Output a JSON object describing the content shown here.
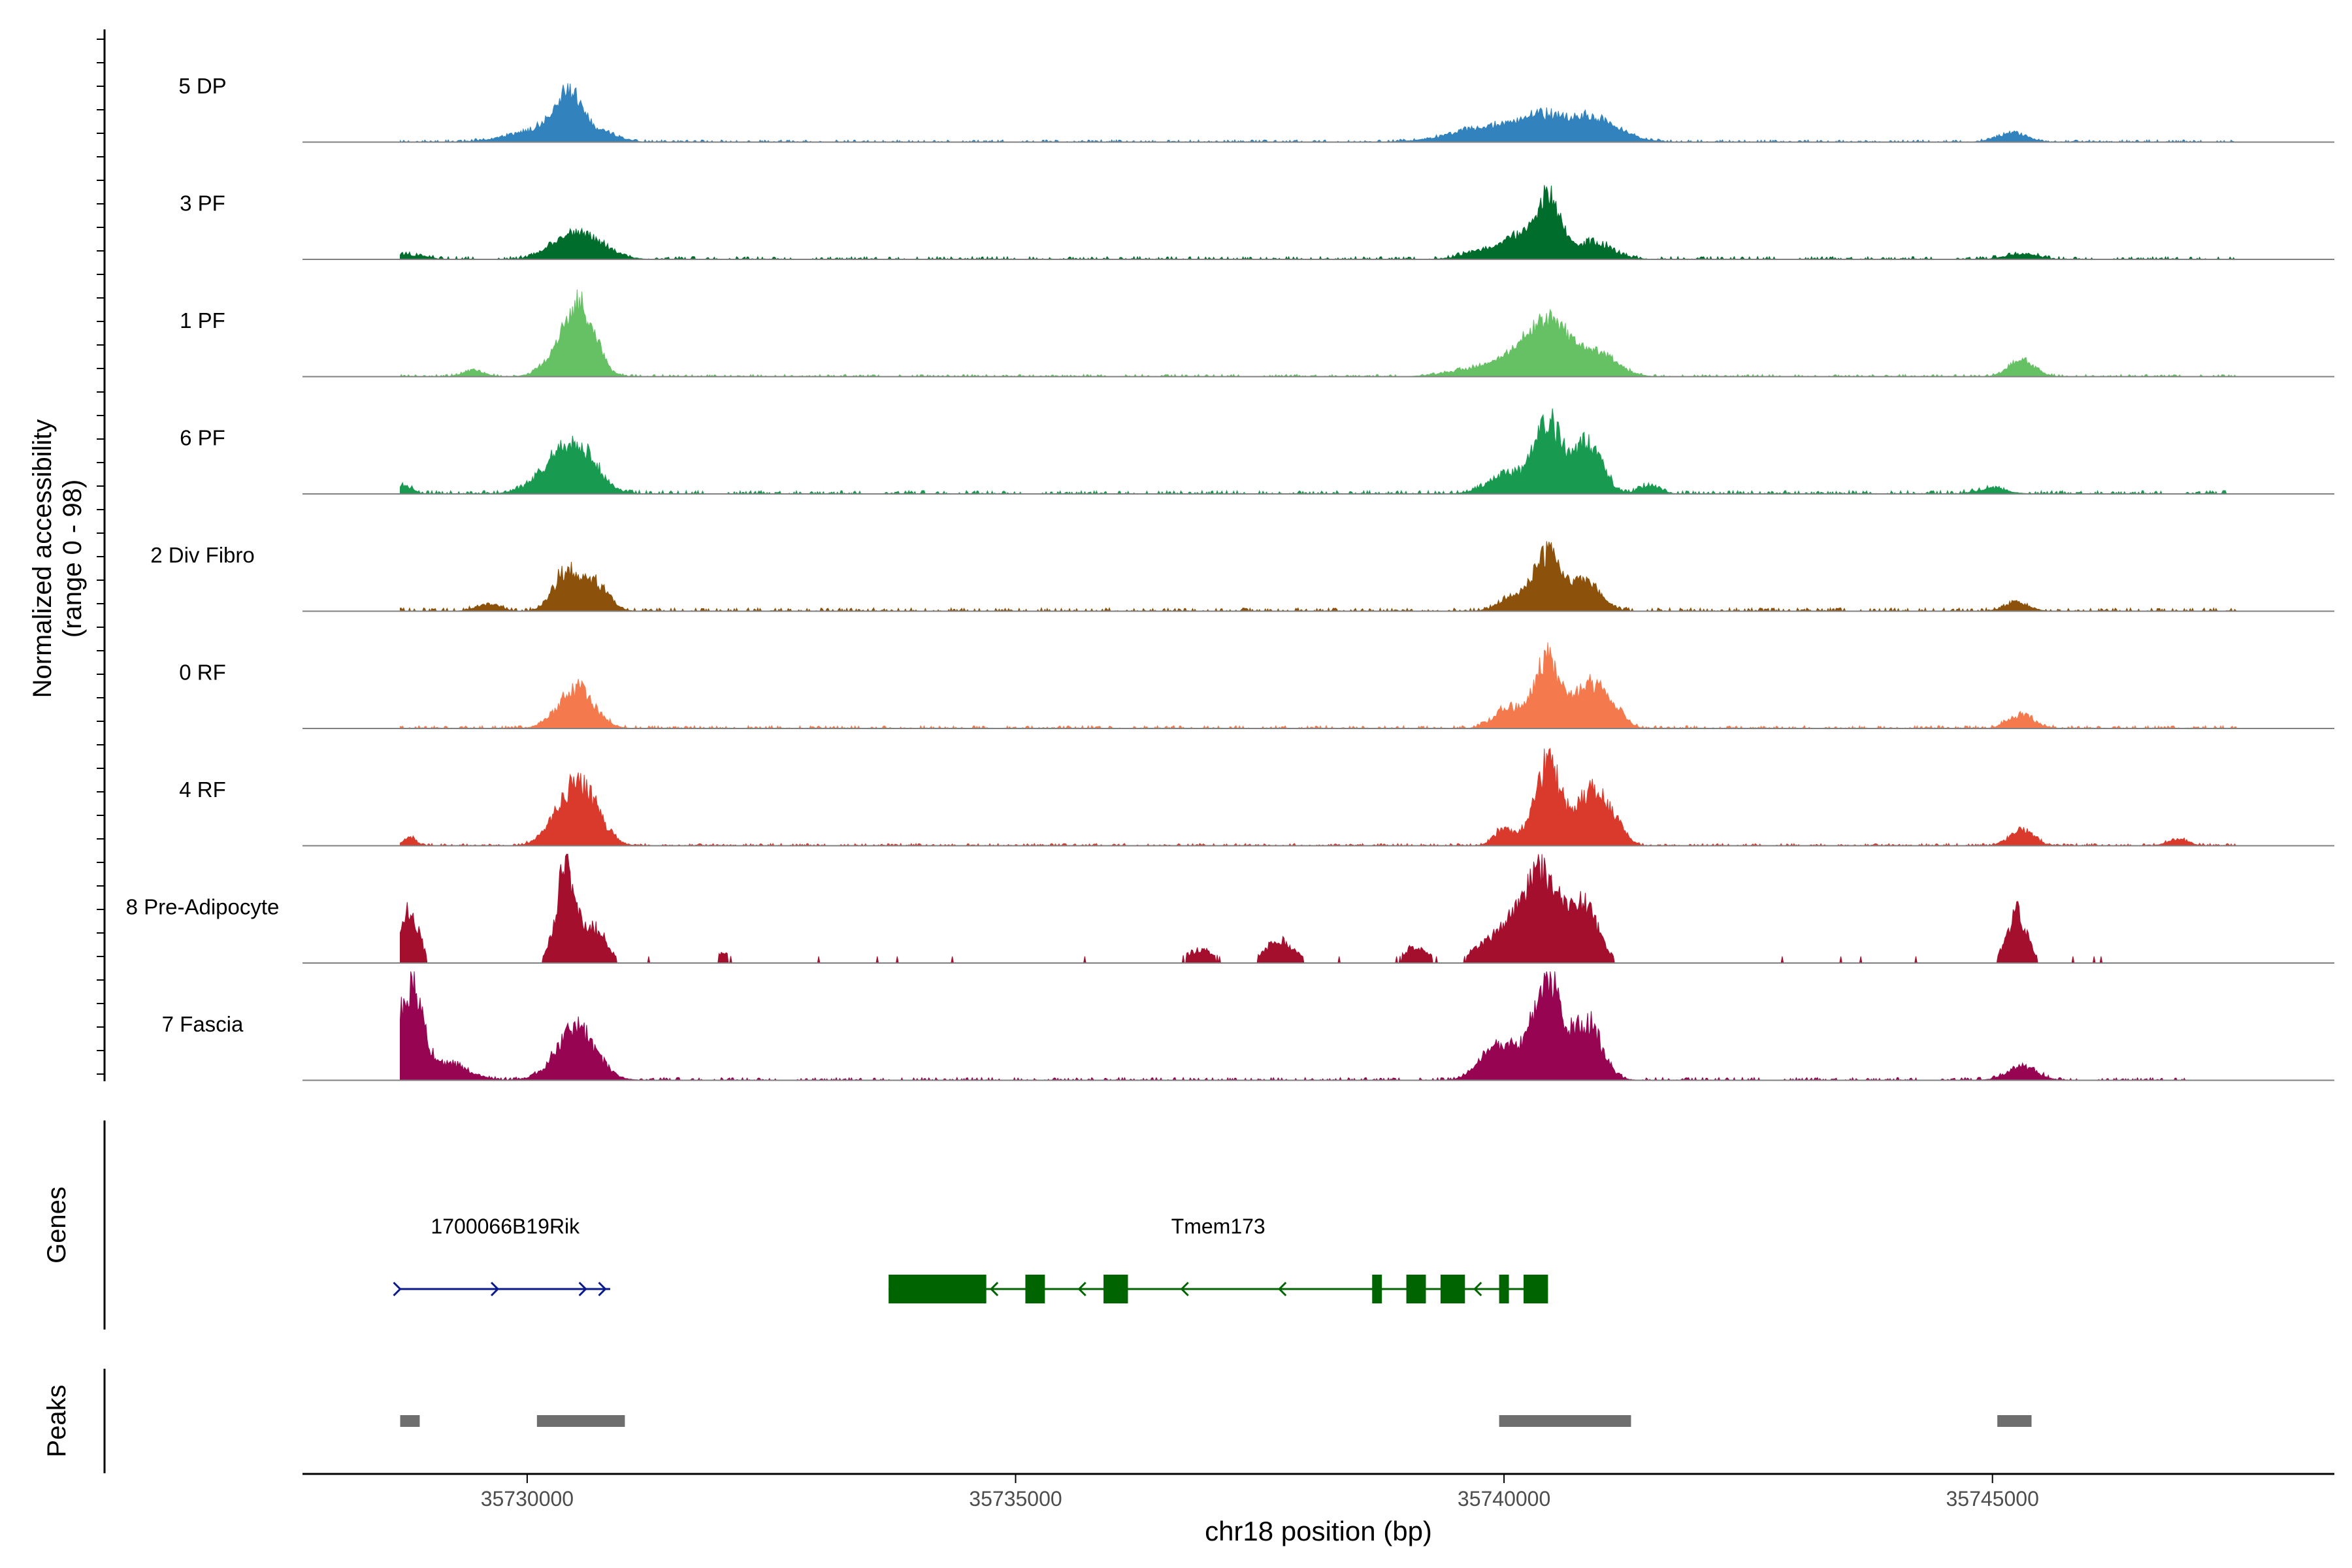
{
  "chart_data": {
    "type": "area",
    "title": "",
    "coverage_ylabel_line1": "Normalized accessibility",
    "coverage_ylabel_line2": "(range 0 - 98)",
    "y_range": [
      0,
      98
    ],
    "genes_label": "Genes",
    "peaks_label": "Peaks",
    "xlabel": "chr18 position (bp)",
    "xlim": [
      35727700,
      35748500
    ],
    "xticks": [
      35730000,
      35735000,
      35740000,
      35745000
    ],
    "xtick_labels": [
      "35730000",
      "35735000",
      "35740000",
      "35745000"
    ],
    "tracks": [
      {
        "name": "5 DP",
        "color": "#3182BD",
        "peaks": [
          [
            35730450,
            0.38,
            130
          ],
          [
            35730250,
            0.12,
            200
          ],
          [
            35729900,
            0.05,
            250
          ],
          [
            35730800,
            0.08,
            150
          ],
          [
            35740400,
            0.22,
            250
          ],
          [
            35740900,
            0.18,
            200
          ],
          [
            35739800,
            0.12,
            350
          ],
          [
            35741200,
            0.05,
            200
          ],
          [
            35745200,
            0.08,
            150
          ]
        ],
        "noise": 0.02,
        "extent": [
          35728700,
          35747500
        ]
      },
      {
        "name": "3 PF",
        "color": "#006D2C",
        "peaks": [
          [
            35730600,
            0.18,
            220
          ],
          [
            35730350,
            0.1,
            180
          ],
          [
            35740450,
            0.55,
            120
          ],
          [
            35740150,
            0.18,
            150
          ],
          [
            35740900,
            0.15,
            200
          ],
          [
            35739800,
            0.08,
            200
          ],
          [
            35728800,
            0.04,
            150
          ],
          [
            35745300,
            0.05,
            150
          ]
        ],
        "noise": 0.025,
        "extent": [
          35728700,
          35747500
        ]
      },
      {
        "name": "1 PF",
        "color": "#66C164",
        "peaks": [
          [
            35730550,
            0.6,
            150
          ],
          [
            35730300,
            0.15,
            150
          ],
          [
            35729450,
            0.06,
            100
          ],
          [
            35740500,
            0.42,
            180
          ],
          [
            35740200,
            0.2,
            200
          ],
          [
            35740950,
            0.2,
            200
          ],
          [
            35739800,
            0.08,
            300
          ],
          [
            35745300,
            0.14,
            130
          ]
        ],
        "noise": 0.02,
        "extent": [
          35728700,
          35747500
        ]
      },
      {
        "name": "6 PF",
        "color": "#189A50",
        "peaks": [
          [
            35730500,
            0.42,
            200
          ],
          [
            35730200,
            0.12,
            200
          ],
          [
            35728700,
            0.08,
            100
          ],
          [
            35740450,
            0.62,
            130
          ],
          [
            35740850,
            0.45,
            150
          ],
          [
            35740050,
            0.18,
            200
          ],
          [
            35741500,
            0.08,
            100
          ],
          [
            35745000,
            0.05,
            150
          ]
        ],
        "noise": 0.03,
        "extent": [
          35728700,
          35747500
        ]
      },
      {
        "name": "2 Div Fibro",
        "color": "#8C510A",
        "peaks": [
          [
            35730400,
            0.35,
            130
          ],
          [
            35730700,
            0.25,
            130
          ],
          [
            35740450,
            0.5,
            140
          ],
          [
            35740850,
            0.25,
            150
          ],
          [
            35740100,
            0.12,
            150
          ],
          [
            35729600,
            0.06,
            120
          ],
          [
            35745250,
            0.08,
            120
          ]
        ],
        "noise": 0.03,
        "extent": [
          35728700,
          35747500
        ]
      },
      {
        "name": "0 RF",
        "color": "#F47A4E",
        "peaks": [
          [
            35730500,
            0.35,
            180
          ],
          [
            35740450,
            0.62,
            130
          ],
          [
            35740850,
            0.38,
            130
          ],
          [
            35741100,
            0.2,
            120
          ],
          [
            35740050,
            0.18,
            150
          ],
          [
            35745300,
            0.12,
            130
          ]
        ],
        "noise": 0.025,
        "extent": [
          35728700,
          35747500
        ]
      },
      {
        "name": "4 RF",
        "color": "#D93A2C",
        "peaks": [
          [
            35730550,
            0.52,
            180
          ],
          [
            35730300,
            0.12,
            150
          ],
          [
            35740450,
            0.72,
            140
          ],
          [
            35740900,
            0.5,
            140
          ],
          [
            35740000,
            0.15,
            100
          ],
          [
            35741150,
            0.15,
            100
          ],
          [
            35728800,
            0.08,
            60
          ],
          [
            35745300,
            0.15,
            120
          ],
          [
            35746900,
            0.06,
            100
          ]
        ],
        "noise": 0.02,
        "extent": [
          35728700,
          35747500
        ]
      },
      {
        "name": "8 Pre-Adipocyte",
        "color": "#A50F2E",
        "peaks": [
          [
            35730400,
            0.85,
            100
          ],
          [
            35730700,
            0.3,
            120
          ],
          [
            35728800,
            0.48,
            90
          ],
          [
            35740400,
            0.8,
            150
          ],
          [
            35740800,
            0.55,
            150
          ],
          [
            35740100,
            0.35,
            150
          ],
          [
            35739800,
            0.15,
            150
          ],
          [
            35745250,
            0.45,
            100
          ],
          [
            35737700,
            0.2,
            150
          ],
          [
            35736900,
            0.12,
            150
          ],
          [
            35739100,
            0.15,
            120
          ],
          [
            35732000,
            0.08,
            100
          ]
        ],
        "noise": 0.0,
        "extent": [
          35728700,
          35746800
        ],
        "bins": true
      },
      {
        "name": "7 Fascia",
        "color": "#960452",
        "peaks": [
          [
            35728800,
            0.85,
            120
          ],
          [
            35729200,
            0.15,
            200
          ],
          [
            35730500,
            0.45,
            200
          ],
          [
            35740450,
            0.9,
            130
          ],
          [
            35740850,
            0.5,
            150
          ],
          [
            35740100,
            0.25,
            200
          ],
          [
            35739850,
            0.15,
            150
          ],
          [
            35745300,
            0.12,
            150
          ]
        ],
        "noise": 0.025,
        "extent": [
          35728700,
          35747000
        ]
      }
    ],
    "genes": [
      {
        "name": "1700066B19Rik",
        "color": "#0A1A8C",
        "strand": "+",
        "start": 35728700,
        "end": 35730850,
        "exons": [],
        "arrows": [
          35728700,
          35729700,
          35730600,
          35730800
        ]
      },
      {
        "name": "Tmem173",
        "color": "#006400",
        "strand": "-",
        "start": 35733700,
        "end": 35740450,
        "exons": [
          [
            35733700,
            35734700
          ],
          [
            35735100,
            35735300
          ],
          [
            35735900,
            35736150
          ],
          [
            35738650,
            35738750
          ],
          [
            35739000,
            35739200
          ],
          [
            35739350,
            35739600
          ],
          [
            35739950,
            35740050
          ],
          [
            35740200,
            35740450
          ]
        ],
        "arrows": [
          35734750,
          35735650,
          35736700,
          35737700,
          35739700
        ]
      }
    ],
    "peak_regions": [
      [
        35728700,
        35728900
      ],
      [
        35730100,
        35731000
      ],
      [
        35739950,
        35741300
      ],
      [
        35745050,
        35745400
      ]
    ]
  }
}
